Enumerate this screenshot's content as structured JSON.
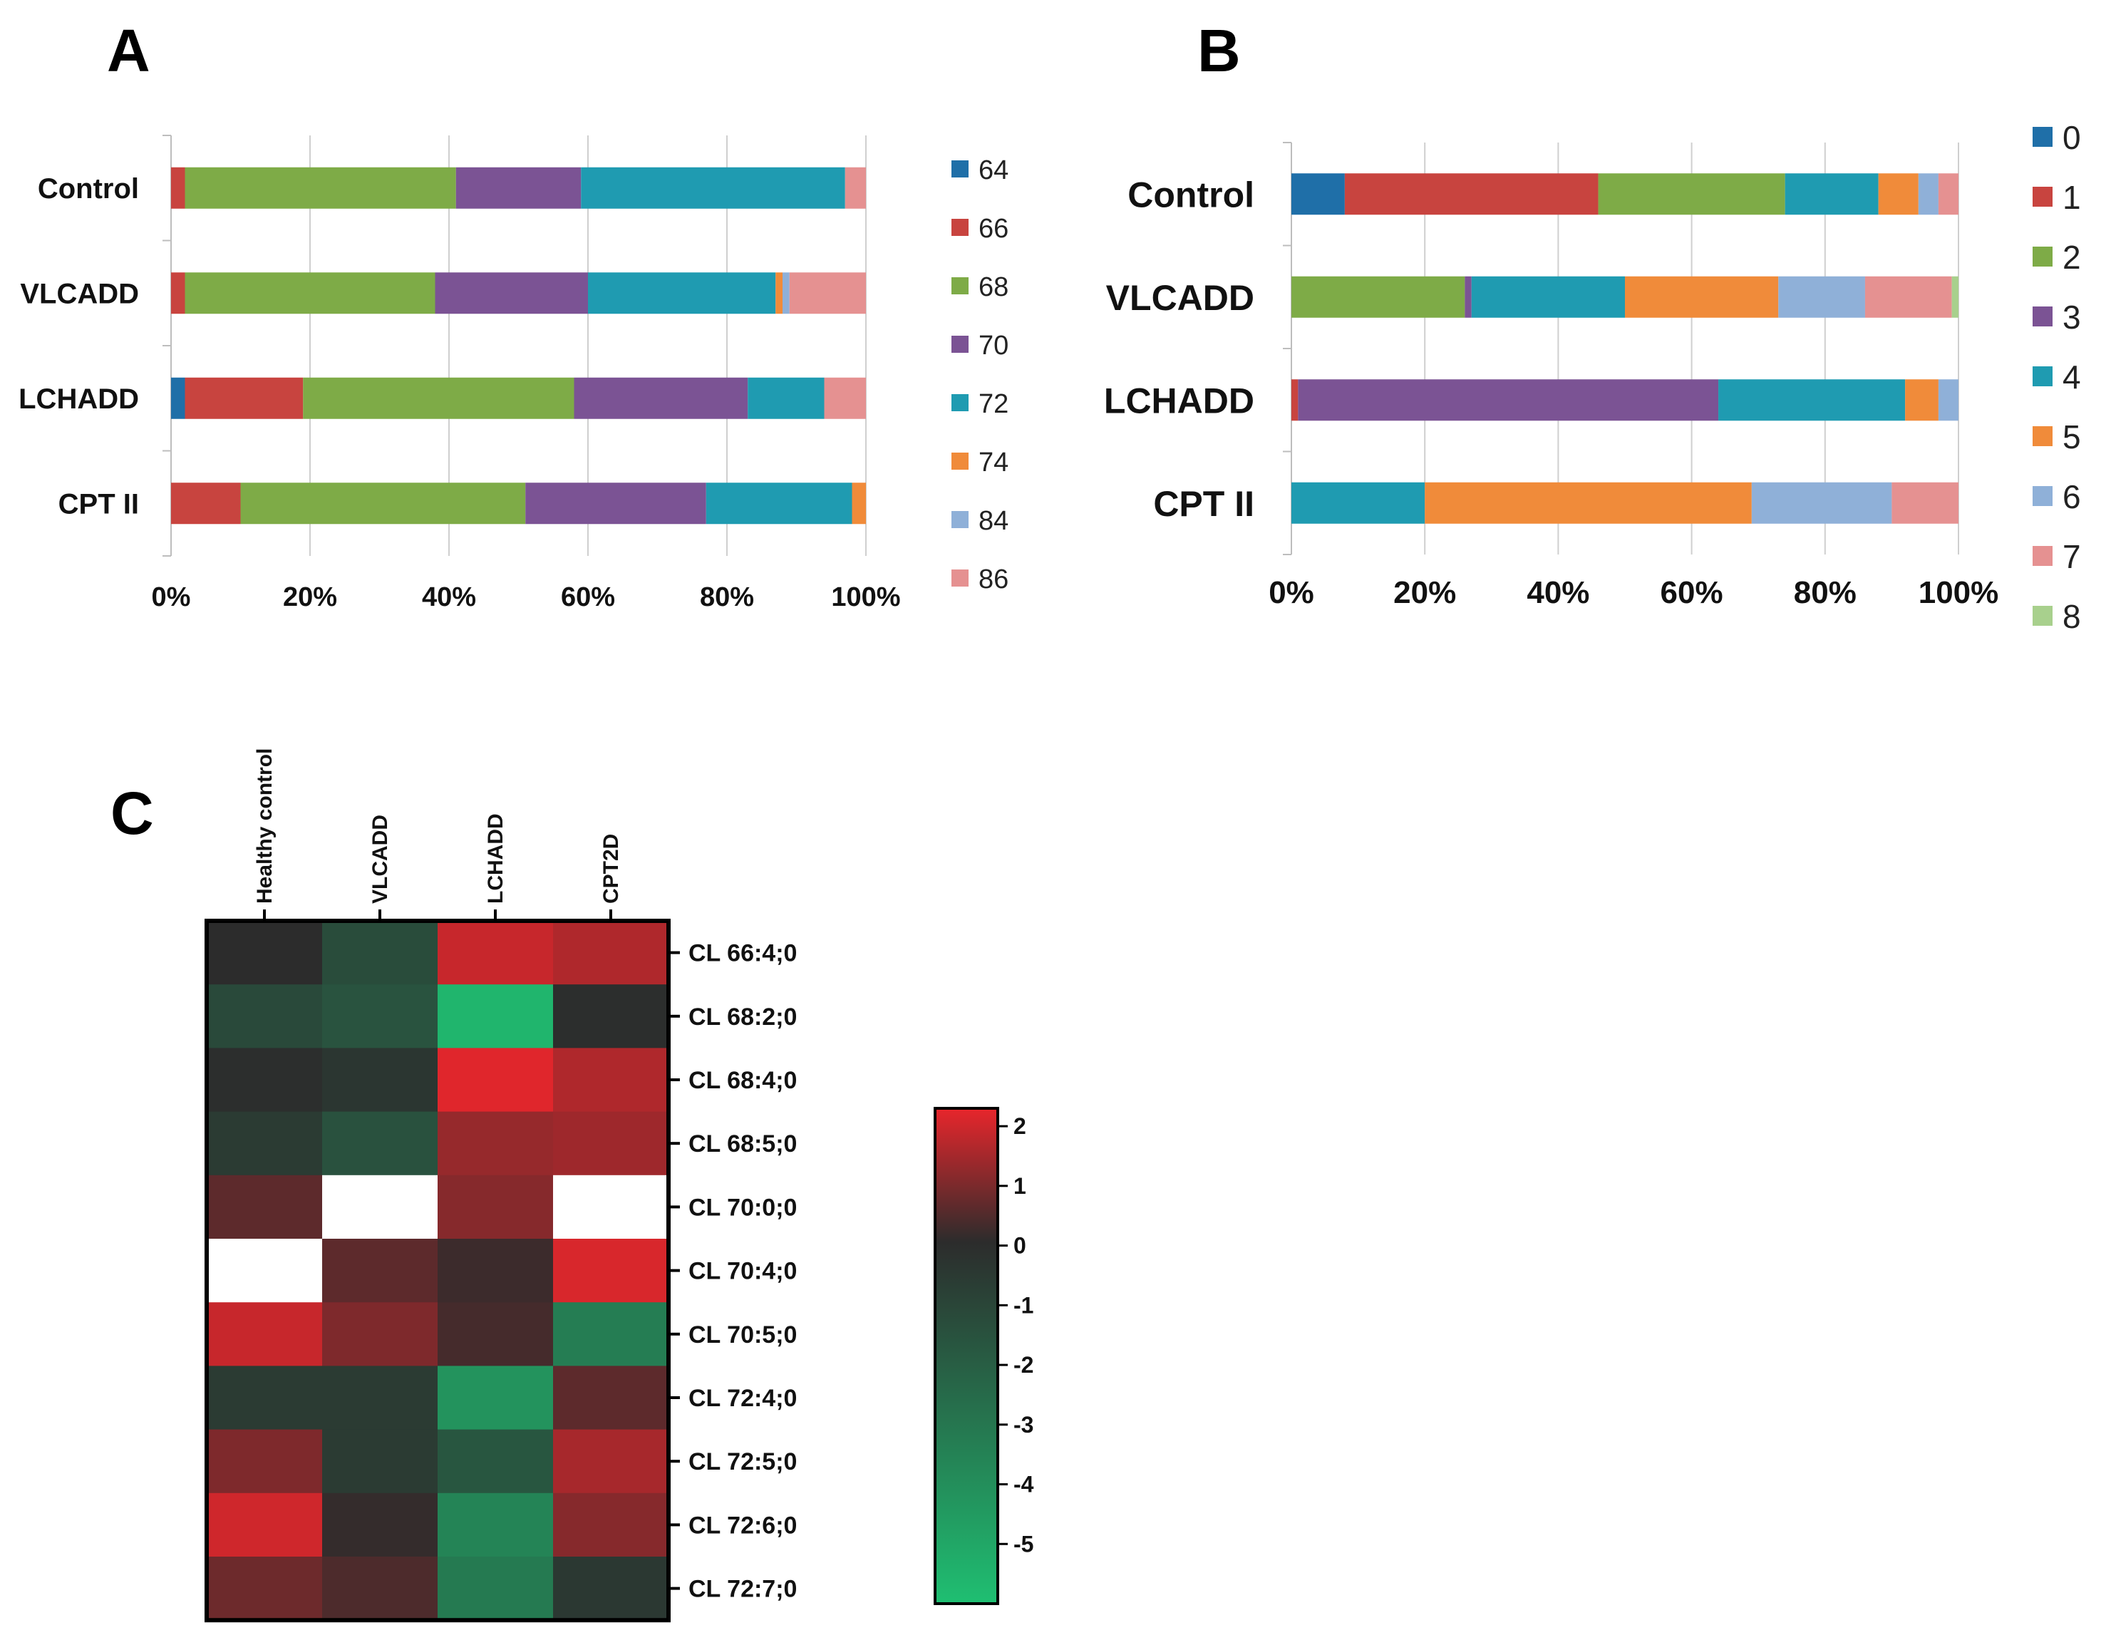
{
  "colors": {
    "bar_series": [
      "#1f6fa8",
      "#c8443f",
      "#7eab47",
      "#7b5394",
      "#1f9bb1",
      "#f08b3a",
      "#8fb0d8",
      "#e59191",
      "#a8d08d"
    ],
    "heatmap_low": "#1fbf72",
    "heatmap_mid": "#2c2c2c",
    "heatmap_high": "#e8262c",
    "missing": "#ffffff"
  },
  "chart_data": [
    {
      "panel": "A",
      "type": "bar",
      "orientation": "horizontal",
      "stacked": "percent",
      "categories": [
        "Control",
        "VLCADD",
        "LCHADD",
        "CPT II"
      ],
      "series": [
        {
          "name": "64",
          "values": [
            0,
            0,
            2,
            0
          ]
        },
        {
          "name": "66",
          "values": [
            2,
            2,
            17,
            10
          ]
        },
        {
          "name": "68",
          "values": [
            39,
            36,
            39,
            41
          ]
        },
        {
          "name": "70",
          "values": [
            18,
            22,
            25,
            26
          ]
        },
        {
          "name": "72",
          "values": [
            38,
            27,
            11,
            21
          ]
        },
        {
          "name": "74",
          "values": [
            0,
            1,
            0,
            2
          ]
        },
        {
          "name": "84",
          "values": [
            0,
            1,
            0,
            0
          ]
        },
        {
          "name": "86",
          "values": [
            3,
            11,
            6,
            0
          ]
        }
      ],
      "xticks": [
        "0%",
        "20%",
        "40%",
        "60%",
        "80%",
        "100%"
      ],
      "xlim": [
        0,
        100
      ],
      "grid": true,
      "legend_position": "right"
    },
    {
      "panel": "B",
      "type": "bar",
      "orientation": "horizontal",
      "stacked": "percent",
      "categories": [
        "Control",
        "VLCADD",
        "LCHADD",
        "CPT II"
      ],
      "series": [
        {
          "name": "0",
          "values": [
            8,
            0,
            0,
            0
          ]
        },
        {
          "name": "1",
          "values": [
            38,
            0,
            1,
            0
          ]
        },
        {
          "name": "2",
          "values": [
            28,
            26,
            0,
            0
          ]
        },
        {
          "name": "3",
          "values": [
            0,
            1,
            63,
            0
          ]
        },
        {
          "name": "4",
          "values": [
            14,
            23,
            28,
            20
          ]
        },
        {
          "name": "5",
          "values": [
            6,
            23,
            5,
            49
          ]
        },
        {
          "name": "6",
          "values": [
            3,
            13,
            3,
            21
          ]
        },
        {
          "name": "7",
          "values": [
            3,
            13,
            0,
            10
          ]
        },
        {
          "name": "8",
          "values": [
            0,
            1,
            0,
            0
          ]
        }
      ],
      "xticks": [
        "0%",
        "20%",
        "40%",
        "60%",
        "80%",
        "100%"
      ],
      "xlim": [
        0,
        100
      ],
      "grid": true,
      "legend_position": "right"
    },
    {
      "panel": "C",
      "type": "heatmap",
      "columns": [
        "Healthy control",
        "VLCADD",
        "LCHADD",
        "CPT2D"
      ],
      "rows": [
        "CL 66:4;0",
        "CL 68:2;0",
        "CL 68:4;0",
        "CL 68:5;0",
        "CL 70:0;0",
        "CL 70:4;0",
        "CL 70:5;0",
        "CL 72:4;0",
        "CL 72:5;0",
        "CL 72:6;0",
        "CL 72:7;0"
      ],
      "values": [
        [
          0,
          -1.3,
          1.9,
          1.6
        ],
        [
          -1.2,
          -1.6,
          -5.6,
          -0.1
        ],
        [
          -0.1,
          -0.4,
          2.2,
          1.6
        ],
        [
          -0.6,
          -1.5,
          1.3,
          1.4
        ],
        [
          0.6,
          null,
          1.1,
          null
        ],
        [
          null,
          0.6,
          0.2,
          2.1
        ],
        [
          1.9,
          1.0,
          0.3,
          -3.3
        ],
        [
          -0.6,
          -0.6,
          -4.2,
          0.6
        ],
        [
          1.0,
          -0.6,
          -1.7,
          1.5
        ],
        [
          2.0,
          0.1,
          -3.6,
          1.1
        ],
        [
          0.8,
          0.4,
          -3.2,
          -0.5
        ]
      ],
      "colorbar_ticks": [
        "2",
        "1",
        "0",
        "-1",
        "-2",
        "-3",
        "-4",
        "-5"
      ],
      "vlim": [
        -6,
        2.3
      ]
    }
  ]
}
